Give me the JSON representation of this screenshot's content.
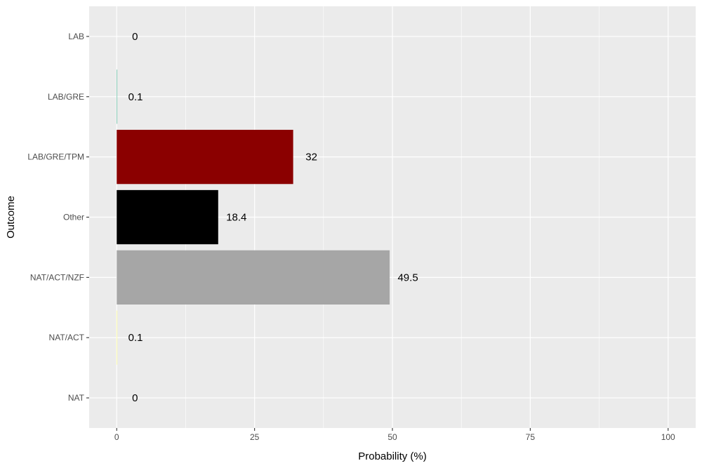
{
  "chart_data": {
    "type": "bar",
    "orientation": "horizontal",
    "xlabel": "Probability (%)",
    "ylabel": "Outcome",
    "xlim": [
      -5,
      105
    ],
    "x_ticks": [
      0,
      25,
      50,
      75,
      100
    ],
    "grid": true,
    "categories": [
      "LAB",
      "LAB/GRE",
      "LAB/GRE/TPM",
      "Other",
      "NAT/ACT/NZF",
      "NAT/ACT",
      "NAT"
    ],
    "values": [
      0,
      0.1,
      32,
      18.4,
      49.5,
      0.1,
      0
    ],
    "labels": [
      "0",
      "0.1",
      "32",
      "18.4",
      "49.5",
      "0.1",
      "0"
    ],
    "colors": [
      "#e41a1c",
      "#66c2a5",
      "#8b0000",
      "#000000",
      "#a6a6a6",
      "#ffff99",
      "#1f78b4"
    ],
    "panel_background": "#ebebeb",
    "grid_color": "#ffffff"
  }
}
